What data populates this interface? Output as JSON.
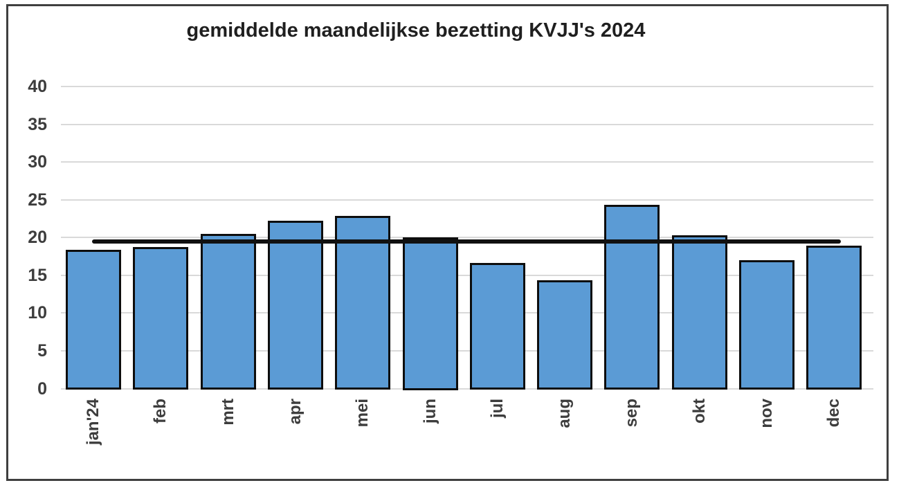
{
  "chart_data": {
    "type": "bar",
    "title": "gemiddelde maandelijkse bezetting KVJJ's 2024",
    "categories": [
      "jan'24",
      "feb",
      "mrt",
      "apr",
      "mei",
      "jun",
      "jul",
      "aug",
      "sep",
      "okt",
      "nov",
      "dec"
    ],
    "values": [
      18.4,
      18.7,
      20.5,
      22.2,
      22.9,
      20.0,
      16.6,
      14.3,
      24.3,
      20.3,
      17.0,
      18.9
    ],
    "average_line_value": 19.5,
    "xlabel": "",
    "ylabel": "",
    "ylim": [
      0,
      40
    ],
    "yticks": [
      0,
      5,
      10,
      15,
      20,
      25,
      30,
      35,
      40
    ],
    "grid": true,
    "legend": "none",
    "bar_color": "#5b9bd5",
    "bar_border_color": "#0d0d0d",
    "average_line_color": "#111111",
    "gridline_color": "#d9d9d9",
    "axis_text_color": "#3d3d3d",
    "title_color": "#1f1f1f"
  }
}
